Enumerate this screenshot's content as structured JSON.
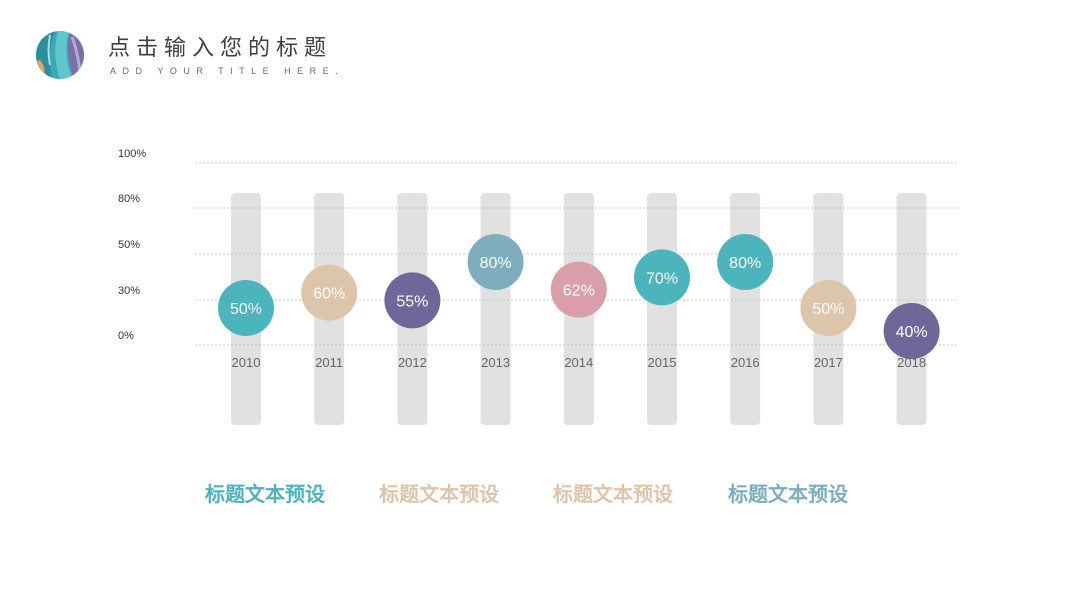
{
  "header": {
    "title": "点击输入您的标题",
    "subtitle": "ADD YOUR TITLE HERE."
  },
  "logo_icon": "abstract-paint-circle-icon",
  "colors": {
    "teal": "#4cb4bd",
    "beige": "#dcc5ab",
    "purple": "#6f6799",
    "steel_blue": "#7eaebe",
    "pink": "#d99ea9",
    "track_gray": "#e1e1e1",
    "gridline": "#c8c8c8",
    "label_gray": "#666666"
  },
  "chart_data": {
    "type": "scatter",
    "y_tick_labels": [
      "0%",
      "30%",
      "50%",
      "80%",
      "100%"
    ],
    "grid": true,
    "categories": [
      "2010",
      "2011",
      "2012",
      "2013",
      "2014",
      "2015",
      "2016",
      "2017",
      "2018"
    ],
    "values": [
      50,
      60,
      55,
      80,
      62,
      70,
      80,
      50,
      40
    ],
    "value_labels": [
      "50%",
      "60%",
      "55%",
      "80%",
      "62%",
      "70%",
      "80%",
      "50%",
      "40%"
    ],
    "point_colors": [
      "teal",
      "beige",
      "purple",
      "steel_blue",
      "pink",
      "teal",
      "teal",
      "beige",
      "purple"
    ]
  },
  "captions": [
    {
      "text": "标题文本预设",
      "color": "teal"
    },
    {
      "text": "标题文本预设",
      "color": "beige"
    },
    {
      "text": "标题文本预设",
      "color": "beige"
    },
    {
      "text": "标题文本预设",
      "color": "steel_blue"
    }
  ]
}
